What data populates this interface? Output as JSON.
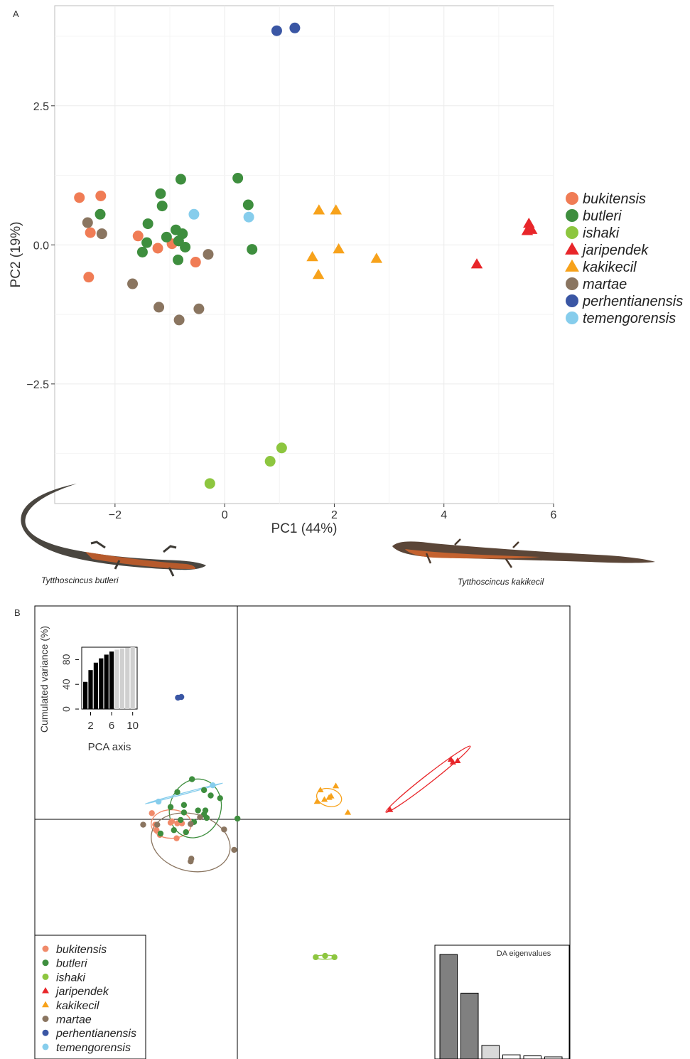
{
  "panel_a": {
    "label": "A",
    "caption_left": "Tytthoscincus butleri",
    "caption_right": "Tytthoscincus kakikecil",
    "chart_data": {
      "type": "scatter",
      "xlabel": "PC1 (44%)",
      "ylabel": "PC2 (19%)",
      "xlim": [
        -3.1,
        6.0
      ],
      "ylim": [
        -4.65,
        4.3
      ],
      "x_ticks": [
        -2,
        0,
        2,
        4,
        6
      ],
      "x_tick_labels": [
        "−2",
        "0",
        "2",
        "4",
        "6"
      ],
      "y_ticks": [
        -2.5,
        0,
        2.5
      ],
      "y_tick_labels": [
        "−2.5",
        "0.0",
        "2.5"
      ],
      "grid": true,
      "legend_position": "right",
      "series": [
        {
          "name": "bukitensis",
          "color": "#f07c55",
          "marker": "circle",
          "points": [
            [
              -2.65,
              0.85
            ],
            [
              -2.26,
              0.88
            ],
            [
              -2.45,
              0.22
            ],
            [
              -1.58,
              0.16
            ],
            [
              -1.22,
              -0.06
            ],
            [
              -0.96,
              0.02
            ],
            [
              -0.53,
              -0.31
            ],
            [
              -2.48,
              -0.58
            ]
          ]
        },
        {
          "name": "butleri",
          "color": "#3e8e3e",
          "marker": "circle",
          "points": [
            [
              -0.8,
              1.18
            ],
            [
              -1.17,
              0.92
            ],
            [
              -1.14,
              0.7
            ],
            [
              -2.27,
              0.55
            ],
            [
              -1.4,
              0.38
            ],
            [
              -0.89,
              0.27
            ],
            [
              -0.77,
              0.2
            ],
            [
              -1.06,
              0.14
            ],
            [
              -0.84,
              0.07
            ],
            [
              -1.42,
              0.04
            ],
            [
              -0.72,
              -0.04
            ],
            [
              -1.5,
              -0.13
            ],
            [
              -0.85,
              -0.27
            ],
            [
              0.24,
              1.2
            ],
            [
              0.43,
              0.72
            ],
            [
              0.5,
              -0.08
            ]
          ]
        },
        {
          "name": "ishaki",
          "color": "#8dc63f",
          "marker": "circle",
          "points": [
            [
              1.04,
              -3.65
            ],
            [
              0.83,
              -3.89
            ],
            [
              -0.27,
              -4.29
            ]
          ]
        },
        {
          "name": "jaripendek",
          "color": "#e8262a",
          "marker": "triangle",
          "points": [
            [
              5.55,
              0.38
            ],
            [
              5.52,
              0.25
            ],
            [
              5.6,
              0.27
            ],
            [
              4.6,
              -0.35
            ]
          ]
        },
        {
          "name": "kakikecil",
          "color": "#f7a21b",
          "marker": "triangle",
          "points": [
            [
              1.72,
              0.62
            ],
            [
              2.03,
              0.62
            ],
            [
              2.08,
              -0.08
            ],
            [
              1.6,
              -0.22
            ],
            [
              2.77,
              -0.25
            ],
            [
              1.71,
              -0.54
            ]
          ]
        },
        {
          "name": "martae",
          "color": "#8a7560",
          "marker": "circle",
          "points": [
            [
              -2.5,
              0.4
            ],
            [
              -2.24,
              0.2
            ],
            [
              -0.3,
              -0.17
            ],
            [
              -1.68,
              -0.7
            ],
            [
              -1.2,
              -1.12
            ],
            [
              -0.47,
              -1.15
            ],
            [
              -0.83,
              -1.35
            ]
          ]
        },
        {
          "name": "perhentianensis",
          "color": "#3a56a4",
          "marker": "circle",
          "points": [
            [
              0.95,
              3.85
            ],
            [
              1.28,
              3.9
            ]
          ]
        },
        {
          "name": "temengorensis",
          "color": "#86cdec",
          "marker": "circle",
          "points": [
            [
              -0.56,
              0.55
            ],
            [
              0.44,
              0.5
            ]
          ]
        }
      ]
    }
  },
  "panel_b": {
    "label": "B",
    "chart_data": {
      "type": "scatter",
      "title": "",
      "xlim": [
        -3.0,
        5.0
      ],
      "ylim": [
        -3.6,
        3.1
      ],
      "grid": false,
      "legend_position": "bottom-left",
      "series": [
        {
          "name": "bukitensis",
          "color": "#f08a6a",
          "marker": "circle",
          "points": [
            [
              -1.25,
              0.05
            ],
            [
              -1.2,
              -0.12
            ],
            [
              -0.95,
              -0.07
            ],
            [
              -0.87,
              -0.1
            ],
            [
              -1.18,
              -0.2
            ],
            [
              -0.97,
              -0.09
            ],
            [
              -0.8,
              -0.1
            ],
            [
              -0.88,
              -0.32
            ],
            [
              -1.13,
              -0.27
            ]
          ],
          "ellipse": {
            "cx": -0.96,
            "cy": -0.11,
            "rx": 0.3,
            "ry": 0.21,
            "rotate_deg": 0
          }
        },
        {
          "name": "butleri",
          "color": "#3e8e3e",
          "marker": "circle",
          "points": [
            [
              -0.65,
              0.55
            ],
            [
              -0.87,
              0.36
            ],
            [
              -0.47,
              0.39
            ],
            [
              -0.23,
              0.27
            ],
            [
              -0.37,
              0.31
            ],
            [
              -0.77,
              0.17
            ],
            [
              -0.97,
              0.14
            ],
            [
              -0.56,
              0.09
            ],
            [
              -0.45,
              0.09
            ],
            [
              -0.77,
              0.06
            ],
            [
              -0.47,
              0.03
            ],
            [
              -0.43,
              -0.02
            ],
            [
              0.03,
              -0.03
            ],
            [
              -0.82,
              -0.05
            ],
            [
              -0.62,
              -0.08
            ],
            [
              -0.74,
              -0.23
            ],
            [
              -1.12,
              -0.25
            ],
            [
              -0.92,
              -0.2
            ]
          ],
          "ellipse": {
            "cx": -0.6,
            "cy": 0.12,
            "rx": 0.38,
            "ry": 0.44,
            "rotate_deg": 20
          }
        },
        {
          "name": "ishaki",
          "color": "#8dc63f",
          "marker": "circle",
          "points": [
            [
              1.2,
              -2.07
            ],
            [
              1.34,
              -2.05
            ],
            [
              1.48,
              -2.07
            ]
          ],
          "ellipse": {
            "cx": 1.34,
            "cy": -2.07,
            "rx": 0.16,
            "ry": 0.03,
            "rotate_deg": 0
          }
        },
        {
          "name": "jaripendek",
          "color": "#e8262a",
          "marker": "triangle",
          "points": [
            [
              3.22,
              0.84
            ],
            [
              3.32,
              0.82
            ],
            [
              3.25,
              0.8
            ],
            [
              2.31,
              0.1
            ]
          ],
          "ellipse": {
            "cx": 2.88,
            "cy": 0.55,
            "rx": 0.8,
            "ry": 0.06,
            "rotate_deg": -38
          }
        },
        {
          "name": "kakikecil",
          "color": "#f7a21b",
          "marker": "triangle",
          "points": [
            [
              1.5,
              0.45
            ],
            [
              1.27,
              0.39
            ],
            [
              1.43,
              0.3
            ],
            [
              1.33,
              0.25
            ],
            [
              1.4,
              0.28
            ],
            [
              1.22,
              0.22
            ],
            [
              1.68,
              0.06
            ]
          ],
          "ellipse": {
            "cx": 1.4,
            "cy": 0.28,
            "rx": 0.19,
            "ry": 0.13,
            "rotate_deg": 15
          }
        },
        {
          "name": "martae",
          "color": "#8a7560",
          "marker": "circle",
          "points": [
            [
              -1.38,
              -0.12
            ],
            [
              -1.17,
              -0.12
            ],
            [
              -0.53,
              -0.01
            ],
            [
              -0.67,
              -0.11
            ],
            [
              -0.17,
              -0.19
            ],
            [
              -0.02,
              -0.49
            ],
            [
              -0.66,
              -0.62
            ],
            [
              -0.67,
              -0.66
            ]
          ],
          "ellipse": {
            "cx": -0.67,
            "cy": -0.38,
            "rx": 0.6,
            "ry": 0.42,
            "rotate_deg": 15
          }
        },
        {
          "name": "perhentianensis",
          "color": "#3a56a4",
          "marker": "circle",
          "points": [
            [
              -0.86,
              1.75
            ],
            [
              -0.81,
              1.76
            ]
          ]
        },
        {
          "name": "temengorensis",
          "color": "#86cdec",
          "marker": "circle",
          "points": [
            [
              -0.34,
              0.46
            ],
            [
              -1.15,
              0.22
            ]
          ],
          "ellipse": {
            "cx": -0.77,
            "cy": 0.34,
            "rx": 0.6,
            "ry": 0.01,
            "rotate_deg": -15
          }
        }
      ],
      "inset_pca": {
        "type": "bar",
        "xlabel": "PCA axis",
        "ylabel": "Cumulated variance (%)",
        "x_tick_labels": [
          "2",
          "6",
          "10"
        ],
        "y_tick_labels": [
          "0",
          "40",
          "80"
        ],
        "ylim": [
          0,
          100
        ],
        "values": [
          44,
          63,
          75,
          82,
          88,
          93,
          96,
          98,
          99,
          100
        ],
        "retained": 6
      },
      "inset_da": {
        "type": "bar",
        "title": "DA eigenvalues",
        "values": [
          100,
          63,
          13,
          4,
          3,
          2
        ],
        "retained": 2
      }
    }
  }
}
